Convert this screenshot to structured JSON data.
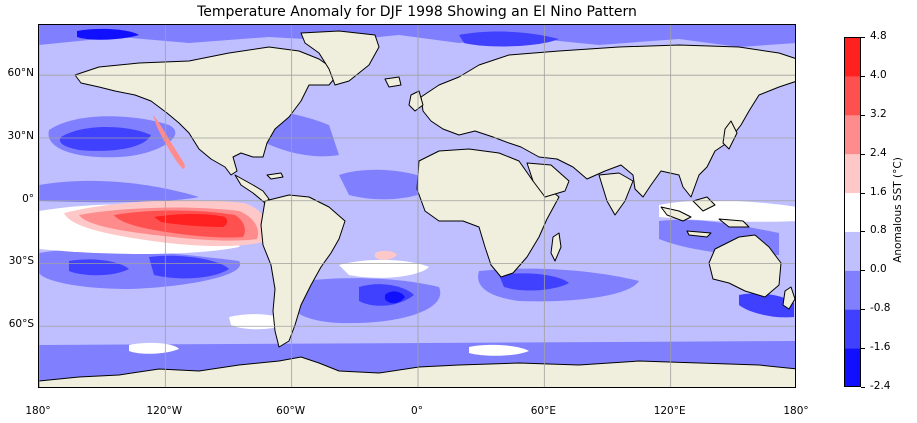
{
  "title": "Temperature Anomaly for DJF 1998 Showing an El Nino Pattern",
  "colors": {
    "ocean_base": "#bfbfff",
    "levels": [
      "#1010ff",
      "#4040ff",
      "#8080ff",
      "#c0c0ff",
      "#ffffff",
      "#ffc8c8",
      "#ff8c8c",
      "#ff5050",
      "#ff2020"
    ],
    "land": "#f0eedc",
    "coast": "#000000",
    "grid": "#a0a0a0"
  },
  "lat_labels": [
    {
      "text": "60°N",
      "lat": 60
    },
    {
      "text": "30°N",
      "lat": 30
    },
    {
      "text": "0°",
      "lat": 0
    },
    {
      "text": "30°S",
      "lat": -30
    },
    {
      "text": "60°S",
      "lat": -60
    }
  ],
  "lon_labels": [
    {
      "text": "180°",
      "lon": -180
    },
    {
      "text": "120°W",
      "lon": -120
    },
    {
      "text": "60°W",
      "lon": -60
    },
    {
      "text": "0°",
      "lon": 0
    },
    {
      "text": "60°E",
      "lon": 60
    },
    {
      "text": "120°E",
      "lon": 120
    },
    {
      "text": "180°",
      "lon": 180
    }
  ],
  "colorbar": {
    "label": "Anomalous SST (°C)",
    "ticks": [
      "-2.4",
      "-1.6",
      "-0.8",
      "0.0",
      "0.8",
      "1.6",
      "2.4",
      "3.2",
      "4.0",
      "4.8"
    ]
  }
}
